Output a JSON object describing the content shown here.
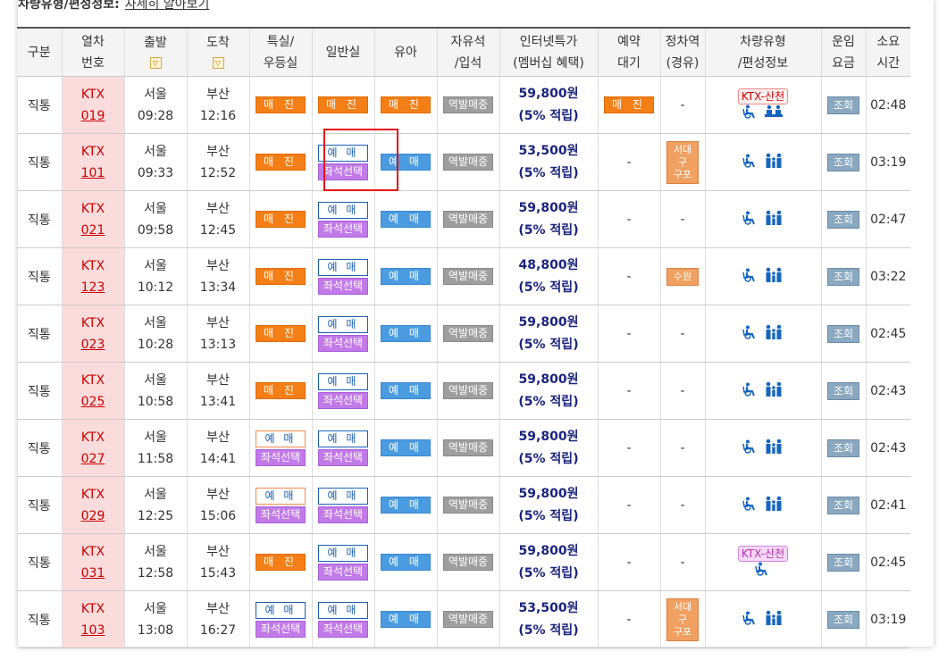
{
  "top_label": "차량유형/편성정보:",
  "top_link": "자세히 알아보기",
  "headers": [
    [
      "구분"
    ],
    [
      "열차",
      "번호"
    ],
    [
      "출발"
    ],
    [
      "도착"
    ],
    [
      "특실/",
      "우등실"
    ],
    [
      "일반실"
    ],
    [
      "유아"
    ],
    [
      "자유석",
      "/입석"
    ],
    [
      "인터넷특가",
      "(멤버십 혜택)"
    ],
    [
      "예약",
      "대기"
    ],
    [
      "정차역",
      "(경유)"
    ],
    [
      "차량유형",
      "/편성정보"
    ],
    [
      "운임",
      "요금"
    ],
    [
      "소요",
      "시간"
    ]
  ],
  "sort_icon": "▽",
  "labels": {
    "sold_out": "매 진",
    "book": "예 매",
    "seat_select": "좌석선택",
    "station_sale": "역발매중",
    "inquire": "조회",
    "dash": "-"
  },
  "rows": [
    {
      "type": "직통",
      "train": "KTX",
      "no": "019",
      "dep_st": "서울",
      "dep": "09:28",
      "arr_st": "부산",
      "arr": "12:16",
      "special": "soldout",
      "general": "soldout",
      "infant": "soldout",
      "fare": "59,800원",
      "benefit": "(5% 적립)",
      "wait": "soldout",
      "stop": "-",
      "badge": "KTX-산천",
      "badge_style": "red",
      "icons": "wheel-seat",
      "duration": "02:48"
    },
    {
      "type": "직통",
      "train": "KTX",
      "no": "101",
      "dep_st": "서울",
      "dep": "09:33",
      "arr_st": "부산",
      "arr": "12:52",
      "special": "soldout",
      "general": "book-seat",
      "infant": "book",
      "fare": "53,500원",
      "benefit": "(5% 적립)",
      "wait": "-",
      "stop": [
        "서대구",
        "구포"
      ],
      "badge": "",
      "icons": "wheel-family",
      "duration": "03:19"
    },
    {
      "type": "직통",
      "train": "KTX",
      "no": "021",
      "dep_st": "서울",
      "dep": "09:58",
      "arr_st": "부산",
      "arr": "12:45",
      "special": "soldout",
      "general": "book-seat",
      "infant": "book",
      "fare": "59,800원",
      "benefit": "(5% 적립)",
      "wait": "-",
      "stop": "-",
      "badge": "",
      "icons": "wheel-family",
      "duration": "02:47"
    },
    {
      "type": "직통",
      "train": "KTX",
      "no": "123",
      "dep_st": "서울",
      "dep": "10:12",
      "arr_st": "부산",
      "arr": "13:34",
      "special": "soldout",
      "general": "book-seat",
      "infant": "book",
      "fare": "48,800원",
      "benefit": "(5% 적립)",
      "wait": "-",
      "stop": [
        "수원"
      ],
      "badge": "",
      "icons": "wheel-family",
      "duration": "03:22"
    },
    {
      "type": "직통",
      "train": "KTX",
      "no": "023",
      "dep_st": "서울",
      "dep": "10:28",
      "arr_st": "부산",
      "arr": "13:13",
      "special": "soldout",
      "general": "book-seat",
      "infant": "book",
      "fare": "59,800원",
      "benefit": "(5% 적립)",
      "wait": "-",
      "stop": "-",
      "badge": "",
      "icons": "wheel-family",
      "duration": "02:45"
    },
    {
      "type": "직통",
      "train": "KTX",
      "no": "025",
      "dep_st": "서울",
      "dep": "10:58",
      "arr_st": "부산",
      "arr": "13:41",
      "special": "soldout",
      "general": "book-seat",
      "infant": "book",
      "fare": "59,800원",
      "benefit": "(5% 적립)",
      "wait": "-",
      "stop": "-",
      "badge": "",
      "icons": "wheel-family",
      "duration": "02:43"
    },
    {
      "type": "직통",
      "train": "KTX",
      "no": "027",
      "dep_st": "서울",
      "dep": "11:58",
      "arr_st": "부산",
      "arr": "14:41",
      "special": "book-seat-orange",
      "general": "book-seat",
      "infant": "book",
      "fare": "59,800원",
      "benefit": "(5% 적립)",
      "wait": "-",
      "stop": "-",
      "badge": "",
      "icons": "wheel-family",
      "duration": "02:43"
    },
    {
      "type": "직통",
      "train": "KTX",
      "no": "029",
      "dep_st": "서울",
      "dep": "12:25",
      "arr_st": "부산",
      "arr": "15:06",
      "special": "book-seat-orange",
      "general": "book-seat",
      "infant": "book",
      "fare": "59,800원",
      "benefit": "(5% 적립)",
      "wait": "-",
      "stop": "-",
      "badge": "",
      "icons": "wheel-family",
      "duration": "02:41"
    },
    {
      "type": "직통",
      "train": "KTX",
      "no": "031",
      "dep_st": "서울",
      "dep": "12:58",
      "arr_st": "부산",
      "arr": "15:43",
      "special": "soldout",
      "general": "book-seat",
      "infant": "book",
      "fare": "59,800원",
      "benefit": "(5% 적립)",
      "wait": "-",
      "stop": "-",
      "badge": "KTX-산천",
      "badge_style": "purple",
      "icons": "wheel",
      "duration": "02:45"
    },
    {
      "type": "직통",
      "train": "KTX",
      "no": "103",
      "dep_st": "서울",
      "dep": "13:08",
      "arr_st": "부산",
      "arr": "16:27",
      "special": "book-seat-blue",
      "general": "book-seat",
      "infant": "book",
      "fare": "53,500원",
      "benefit": "(5% 적립)",
      "wait": "-",
      "stop": [
        "서대구",
        "구포"
      ],
      "badge": "",
      "icons": "wheel-family",
      "duration": "03:19"
    }
  ]
}
